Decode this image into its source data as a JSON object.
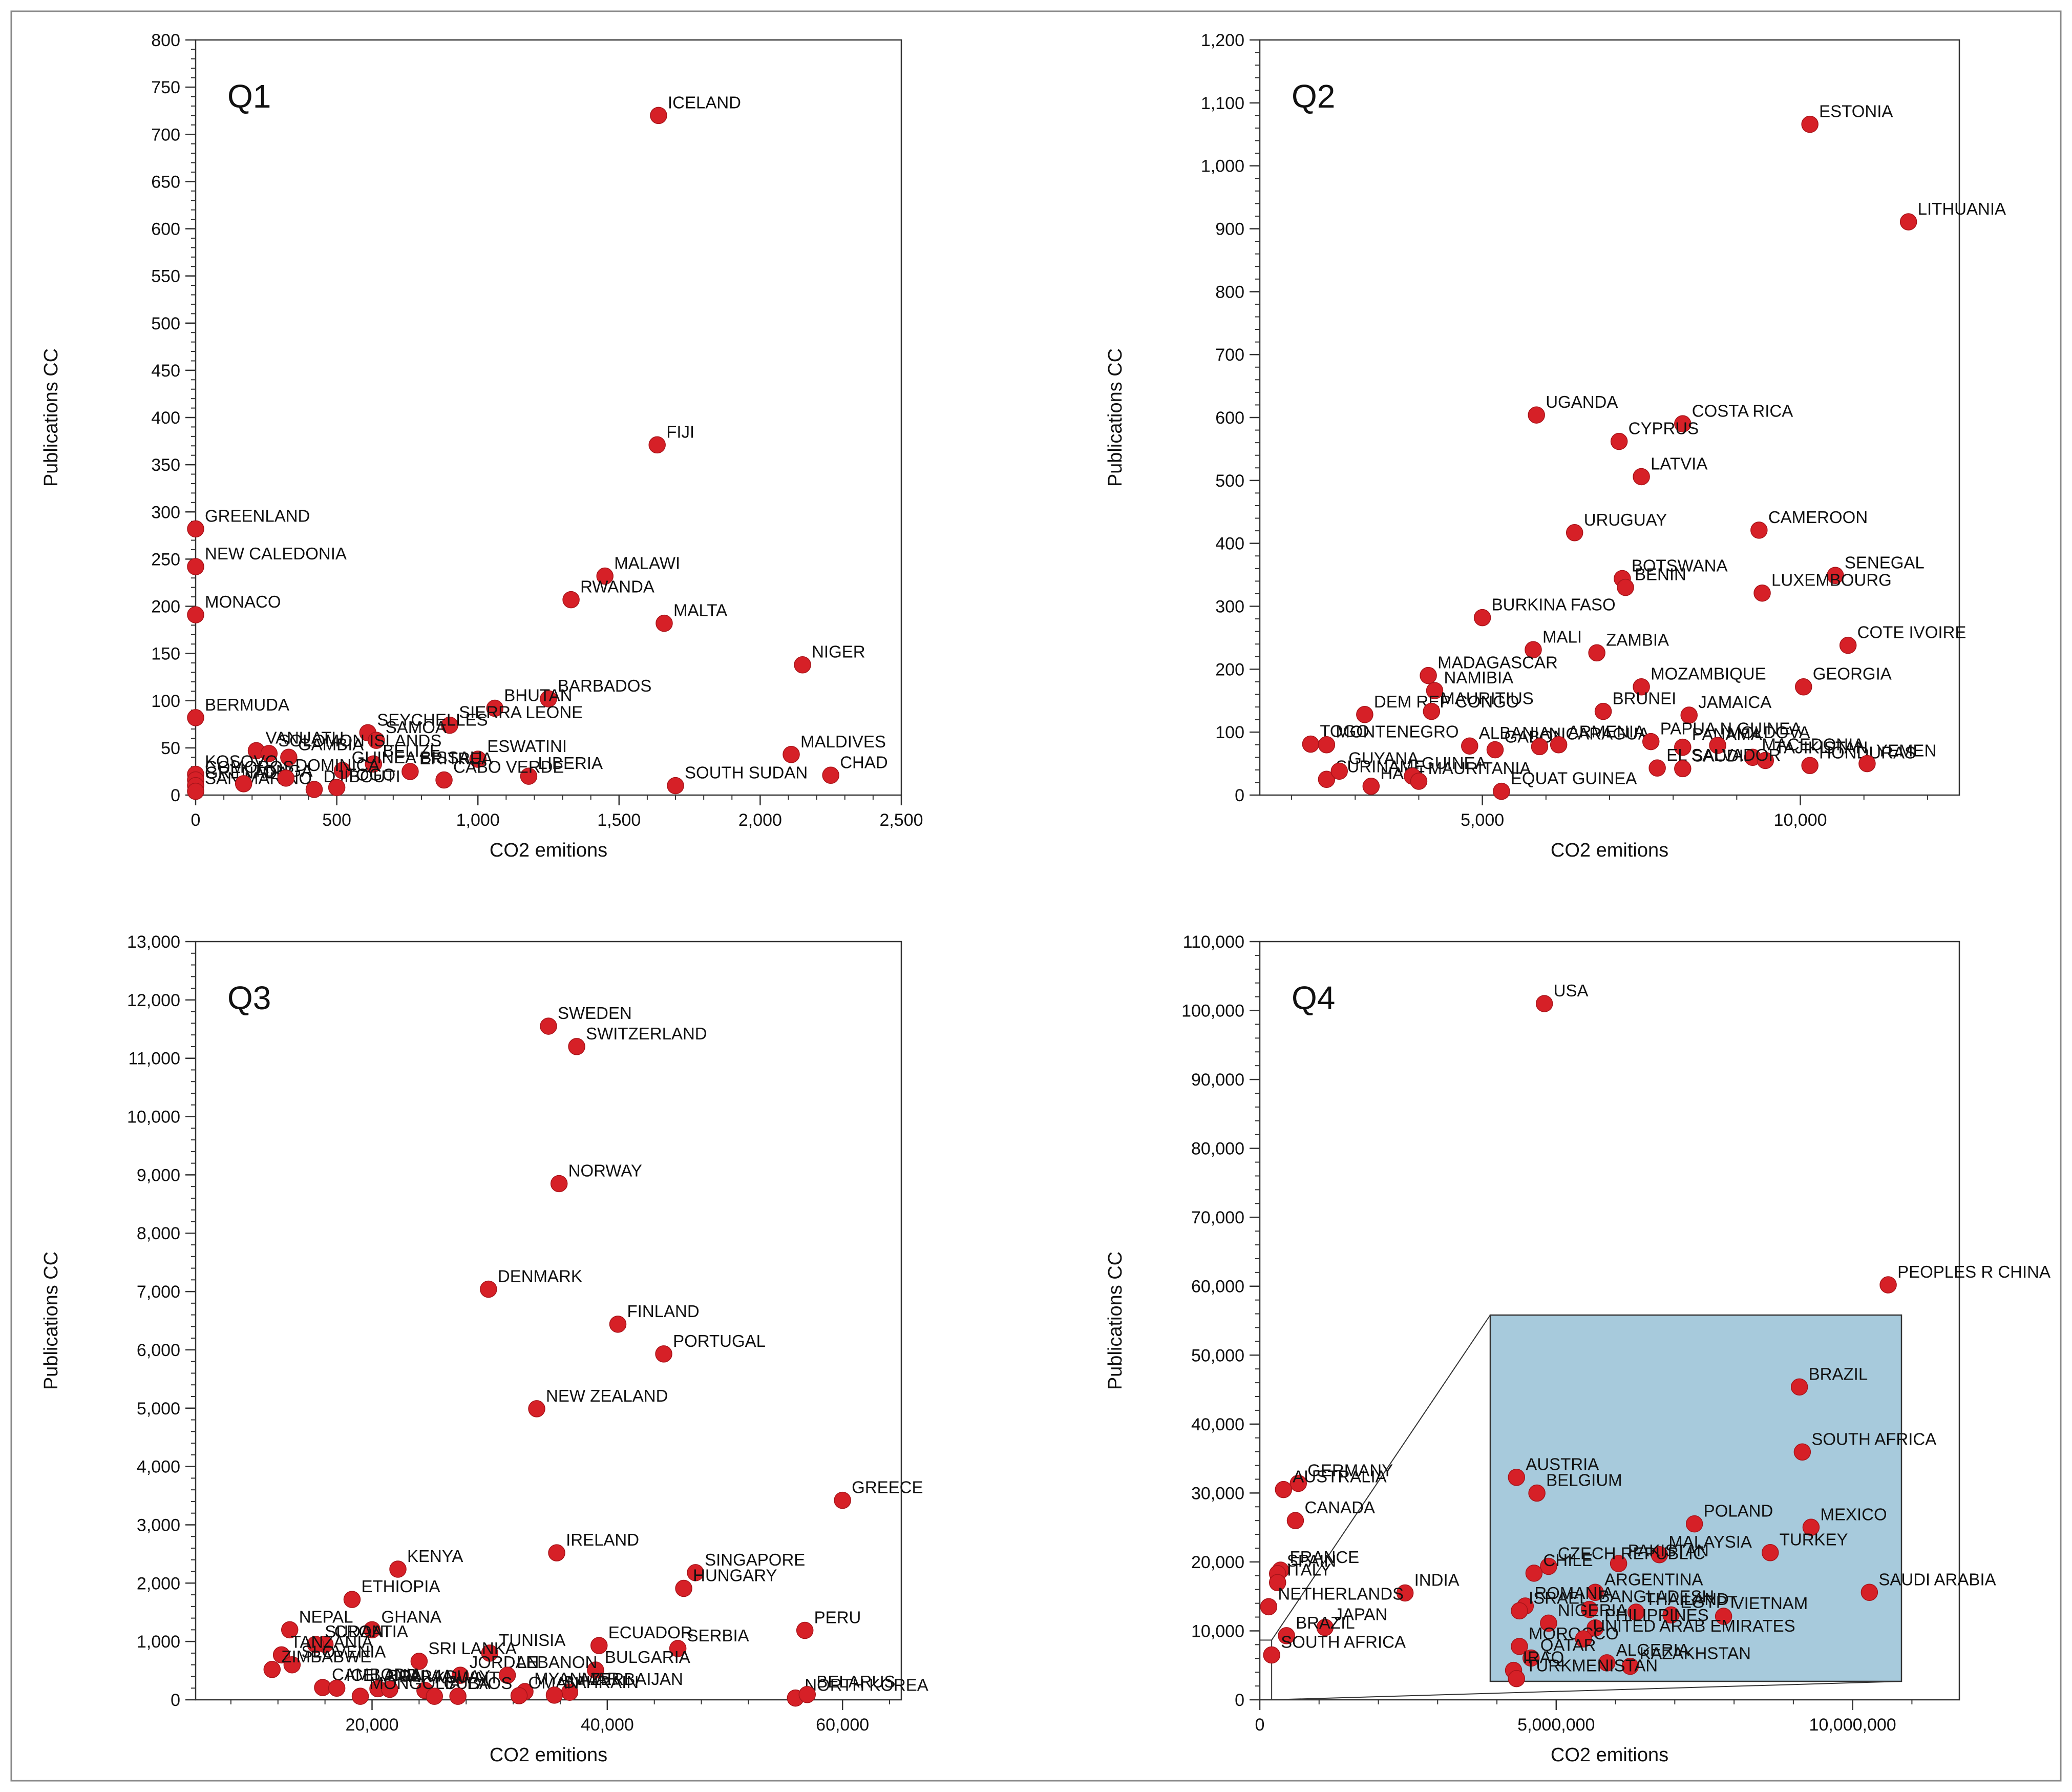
{
  "chart_data": [
    {
      "type": "scatter",
      "title": "Q1",
      "xlabel": "CO2 emitions",
      "ylabel": "Publications CC",
      "xlim": [
        0,
        2500
      ],
      "ylim": [
        0,
        800
      ],
      "xticks": [
        0,
        500,
        1000,
        1500,
        2000,
        2500
      ],
      "xtick_labels": [
        "0",
        "500",
        "1,000",
        "1,500",
        "2,000",
        "2,500"
      ],
      "yticks": [
        0,
        50,
        100,
        150,
        200,
        250,
        300,
        350,
        400,
        450,
        500,
        550,
        600,
        650,
        700,
        750,
        800
      ],
      "ytick_labels": [
        "0",
        "50",
        "100",
        "150",
        "200",
        "250",
        "300",
        "350",
        "400",
        "450",
        "500",
        "550",
        "600",
        "650",
        "700",
        "750",
        "800"
      ],
      "grid": false,
      "points": [
        {
          "x": 1640,
          "y": 720,
          "label": "ICELAND"
        },
        {
          "x": 1635,
          "y": 371,
          "label": "FIJI"
        },
        {
          "x": 0,
          "y": 282,
          "label": "GREENLAND"
        },
        {
          "x": 0,
          "y": 242,
          "label": "NEW CALEDONIA"
        },
        {
          "x": 1450,
          "y": 232,
          "label": "MALAWI"
        },
        {
          "x": 1330,
          "y": 207,
          "label": "RWANDA"
        },
        {
          "x": 0,
          "y": 191,
          "label": "MONACO"
        },
        {
          "x": 1660,
          "y": 182,
          "label": "MALTA"
        },
        {
          "x": 2150,
          "y": 138,
          "label": "NIGER"
        },
        {
          "x": 1250,
          "y": 102,
          "label": "BARBADOS"
        },
        {
          "x": 1060,
          "y": 92,
          "label": "BHUTAN"
        },
        {
          "x": 0,
          "y": 82,
          "label": "BERMUDA"
        },
        {
          "x": 900,
          "y": 74,
          "label": "SIERRA LEONE"
        },
        {
          "x": 610,
          "y": 66,
          "label": "SEYCHELLES"
        },
        {
          "x": 640,
          "y": 58,
          "label": "SAMOA"
        },
        {
          "x": 2110,
          "y": 43,
          "label": "MALDIVES"
        },
        {
          "x": 215,
          "y": 47,
          "label": "VANUATU"
        },
        {
          "x": 260,
          "y": 44,
          "label": "SOLOMON ISLANDS"
        },
        {
          "x": 330,
          "y": 40,
          "label": "GAMBIA"
        },
        {
          "x": 1000,
          "y": 38,
          "label": "ESWATINI"
        },
        {
          "x": 2250,
          "y": 21,
          "label": "CHAD"
        },
        {
          "x": 1180,
          "y": 20,
          "label": "LIBERIA"
        },
        {
          "x": 1700,
          "y": 10,
          "label": "SOUTH SUDAN"
        },
        {
          "x": 880,
          "y": 16,
          "label": "CABO VERDE"
        },
        {
          "x": 760,
          "y": 25,
          "label": "ERITREA"
        },
        {
          "x": 630,
          "y": 33,
          "label": "BELIZE"
        },
        {
          "x": 520,
          "y": 26,
          "label": "GUINEA BISSAU"
        },
        {
          "x": 420,
          "y": 6,
          "label": "DJIBOUTI"
        },
        {
          "x": 500,
          "y": 8,
          "label": "TOGO"
        },
        {
          "x": 0,
          "y": 22,
          "label": "KOSOVO"
        },
        {
          "x": 0,
          "y": 16,
          "label": "COMOROS"
        },
        {
          "x": 0,
          "y": 10,
          "label": "GRENADA"
        },
        {
          "x": 0,
          "y": 4,
          "label": "SAN MARINO"
        },
        {
          "x": 170,
          "y": 12,
          "label": "TONGA"
        },
        {
          "x": 320,
          "y": 18,
          "label": "DOMINICA"
        }
      ]
    },
    {
      "type": "scatter",
      "title": "Q2",
      "xlabel": "CO2 emitions",
      "ylabel": "Publications CC",
      "xlim": [
        1500,
        12500
      ],
      "ylim": [
        0,
        1200
      ],
      "xticks": [
        5000,
        10000
      ],
      "xtick_labels": [
        "5,000",
        "10,000"
      ],
      "yticks": [
        0,
        100,
        200,
        300,
        400,
        500,
        600,
        700,
        800,
        900,
        1000,
        1100,
        1200
      ],
      "ytick_labels": [
        "0",
        "100",
        "200",
        "300",
        "400",
        "500",
        "600",
        "700",
        "800",
        "900",
        "1,000",
        "1,100",
        "1,200"
      ],
      "grid": false,
      "points": [
        {
          "x": 10150,
          "y": 1066,
          "label": "ESTONIA"
        },
        {
          "x": 11700,
          "y": 911,
          "label": "LITHUANIA"
        },
        {
          "x": 5850,
          "y": 604,
          "label": "UGANDA"
        },
        {
          "x": 8150,
          "y": 590,
          "label": "COSTA RICA"
        },
        {
          "x": 7150,
          "y": 562,
          "label": "CYPRUS"
        },
        {
          "x": 7500,
          "y": 506,
          "label": "LATVIA"
        },
        {
          "x": 6450,
          "y": 417,
          "label": "URUGUAY"
        },
        {
          "x": 9350,
          "y": 421,
          "label": "CAMEROON"
        },
        {
          "x": 7200,
          "y": 344,
          "label": "BOTSWANA"
        },
        {
          "x": 7250,
          "y": 330,
          "label": "BENIN"
        },
        {
          "x": 10550,
          "y": 349,
          "label": "SENEGAL"
        },
        {
          "x": 9400,
          "y": 321,
          "label": "LUXEMBOURG"
        },
        {
          "x": 5000,
          "y": 282,
          "label": "BURKINA FASO"
        },
        {
          "x": 10750,
          "y": 238,
          "label": "COTE IVOIRE"
        },
        {
          "x": 5800,
          "y": 231,
          "label": "MALI"
        },
        {
          "x": 6800,
          "y": 226,
          "label": "ZAMBIA"
        },
        {
          "x": 4150,
          "y": 190,
          "label": "MADAGASCAR"
        },
        {
          "x": 4250,
          "y": 166,
          "label": "NAMIBIA"
        },
        {
          "x": 7500,
          "y": 172,
          "label": "MOZAMBIQUE"
        },
        {
          "x": 10050,
          "y": 172,
          "label": "GEORGIA"
        },
        {
          "x": 3150,
          "y": 128,
          "label": "DEM REP CONGO"
        },
        {
          "x": 4200,
          "y": 133,
          "label": "MAURITIUS"
        },
        {
          "x": 6900,
          "y": 133,
          "label": "BRUNEI"
        },
        {
          "x": 8250,
          "y": 127,
          "label": "JAMAICA"
        },
        {
          "x": 2300,
          "y": 81,
          "label": "TOGO"
        },
        {
          "x": 2550,
          "y": 80,
          "label": "MONTENEGRO"
        },
        {
          "x": 4800,
          "y": 78,
          "label": "ALBANIA"
        },
        {
          "x": 5200,
          "y": 72,
          "label": "GABON"
        },
        {
          "x": 5900,
          "y": 77,
          "label": "NICARAGUA"
        },
        {
          "x": 6200,
          "y": 80,
          "label": "ARMENIA"
        },
        {
          "x": 7650,
          "y": 85,
          "label": "PAPUA N GUINEA"
        },
        {
          "x": 8150,
          "y": 76,
          "label": "PANAMA"
        },
        {
          "x": 8700,
          "y": 79,
          "label": "MOLDOVA"
        },
        {
          "x": 9250,
          "y": 60,
          "label": "MACEDONIA"
        },
        {
          "x": 9450,
          "y": 55,
          "label": "TAJIKISTAN"
        },
        {
          "x": 10150,
          "y": 47,
          "label": "HONDURAS"
        },
        {
          "x": 11050,
          "y": 50,
          "label": "YEMEN"
        },
        {
          "x": 2550,
          "y": 25,
          "label": "SURINAME"
        },
        {
          "x": 2750,
          "y": 38,
          "label": "GUYANA"
        },
        {
          "x": 3250,
          "y": 14,
          "label": "HAITI"
        },
        {
          "x": 3900,
          "y": 30,
          "label": "GUINEA"
        },
        {
          "x": 4000,
          "y": 22,
          "label": "MAURITANIA"
        },
        {
          "x": 5300,
          "y": 6,
          "label": "EQUAT GUINEA"
        },
        {
          "x": 7750,
          "y": 43,
          "label": "EL SALVADOR"
        },
        {
          "x": 8150,
          "y": 42,
          "label": "SAUDI"
        }
      ]
    },
    {
      "type": "scatter",
      "title": "Q3",
      "xlabel": "CO2 emitions",
      "ylabel": "Publications CC",
      "xlim": [
        5000,
        65000
      ],
      "ylim": [
        0,
        13000
      ],
      "xticks": [
        20000,
        40000,
        60000
      ],
      "xtick_labels": [
        "20,000",
        "40,000",
        "60,000"
      ],
      "yticks": [
        0,
        1000,
        2000,
        3000,
        4000,
        5000,
        6000,
        7000,
        8000,
        9000,
        10000,
        11000,
        12000,
        13000
      ],
      "ytick_labels": [
        "0",
        "1,000",
        "2,000",
        "3,000",
        "4,000",
        "5,000",
        "6,000",
        "7,000",
        "8,000",
        "9,000",
        "10,000",
        "11,000",
        "12,000",
        "13,000"
      ],
      "grid": false,
      "points": [
        {
          "x": 35000,
          "y": 11550,
          "label": "SWEDEN"
        },
        {
          "x": 37400,
          "y": 11200,
          "label": "SWITZERLAND"
        },
        {
          "x": 35900,
          "y": 8850,
          "label": "NORWAY"
        },
        {
          "x": 29900,
          "y": 7040,
          "label": "DENMARK"
        },
        {
          "x": 40900,
          "y": 6440,
          "label": "FINLAND"
        },
        {
          "x": 44800,
          "y": 5930,
          "label": "PORTUGAL"
        },
        {
          "x": 34000,
          "y": 4990,
          "label": "NEW ZEALAND"
        },
        {
          "x": 60000,
          "y": 3420,
          "label": "GREECE"
        },
        {
          "x": 35700,
          "y": 2520,
          "label": "IRELAND"
        },
        {
          "x": 22200,
          "y": 2240,
          "label": "KENYA"
        },
        {
          "x": 47500,
          "y": 2180,
          "label": "SINGAPORE"
        },
        {
          "x": 46500,
          "y": 1910,
          "label": "HUNGARY"
        },
        {
          "x": 18300,
          "y": 1720,
          "label": "ETHIOPIA"
        },
        {
          "x": 56800,
          "y": 1190,
          "label": "PERU"
        },
        {
          "x": 13000,
          "y": 1200,
          "label": "NEPAL"
        },
        {
          "x": 20000,
          "y": 1200,
          "label": "GHANA"
        },
        {
          "x": 16000,
          "y": 950,
          "label": "CROATIA"
        },
        {
          "x": 15200,
          "y": 950,
          "label": "SUDAN"
        },
        {
          "x": 39300,
          "y": 930,
          "label": "ECUADOR"
        },
        {
          "x": 46000,
          "y": 880,
          "label": "SERBIA"
        },
        {
          "x": 30000,
          "y": 800,
          "label": "TUNISIA"
        },
        {
          "x": 12300,
          "y": 770,
          "label": "TANZANIA"
        },
        {
          "x": 24000,
          "y": 660,
          "label": "SRI LANKA"
        },
        {
          "x": 13200,
          "y": 600,
          "label": "SLOVENIA"
        },
        {
          "x": 11500,
          "y": 520,
          "label": "ZIMBABWE"
        },
        {
          "x": 39000,
          "y": 510,
          "label": "BULGARIA"
        },
        {
          "x": 27500,
          "y": 420,
          "label": "JORDAN"
        },
        {
          "x": 31500,
          "y": 420,
          "label": "LEBANON"
        },
        {
          "x": 15800,
          "y": 210,
          "label": "CAMBODIA"
        },
        {
          "x": 17000,
          "y": 200,
          "label": "ICELAND"
        },
        {
          "x": 20500,
          "y": 190,
          "label": "BOLIVIA"
        },
        {
          "x": 21500,
          "y": 180,
          "label": "PARAGUAY"
        },
        {
          "x": 24500,
          "y": 160,
          "label": "KUWAIT"
        },
        {
          "x": 33000,
          "y": 140,
          "label": "MYANMAR"
        },
        {
          "x": 36800,
          "y": 130,
          "label": "AZERBAIJAN"
        },
        {
          "x": 19000,
          "y": 60,
          "label": "MONGOLIA"
        },
        {
          "x": 25300,
          "y": 60,
          "label": "CUBA"
        },
        {
          "x": 27300,
          "y": 60,
          "label": "LAOS"
        },
        {
          "x": 32500,
          "y": 70,
          "label": "OMAN"
        },
        {
          "x": 35500,
          "y": 80,
          "label": "BAHRAIN"
        },
        {
          "x": 56000,
          "y": 30,
          "label": "NORTH KOREA"
        },
        {
          "x": 57000,
          "y": 90,
          "label": "BELARUS"
        }
      ]
    },
    {
      "type": "scatter",
      "title": "Q4",
      "xlabel": "CO2 emitions",
      "ylabel": "Publications CC",
      "xlim": [
        0,
        11800000
      ],
      "ylim": [
        0,
        110000
      ],
      "xticks": [
        0,
        5000000,
        10000000
      ],
      "xtick_labels": [
        "0",
        "5,000,000",
        "10,000,000"
      ],
      "yticks": [
        0,
        10000,
        20000,
        30000,
        40000,
        50000,
        60000,
        70000,
        80000,
        90000,
        100000,
        110000
      ],
      "ytick_labels": [
        "0",
        "10,000",
        "20,000",
        "30,000",
        "40,000",
        "50,000",
        "60,000",
        "70,000",
        "80,000",
        "90,000",
        "100,000",
        "110,000"
      ],
      "grid": false,
      "points": [
        {
          "x": 4800000,
          "y": 101000,
          "label": "USA"
        },
        {
          "x": 10600000,
          "y": 60200,
          "label": "PEOPLES R CHINA"
        },
        {
          "x": 650000,
          "y": 31400,
          "label": "GERMANY"
        },
        {
          "x": 400000,
          "y": 30500,
          "label": "AUSTRALIA"
        },
        {
          "x": 600000,
          "y": 26000,
          "label": "CANADA"
        },
        {
          "x": 350000,
          "y": 18800,
          "label": "FRANCE"
        },
        {
          "x": 300000,
          "y": 18300,
          "label": "SPAIN"
        },
        {
          "x": 300000,
          "y": 17000,
          "label": "ITALY"
        },
        {
          "x": 2450000,
          "y": 15500,
          "label": "INDIA"
        },
        {
          "x": 150000,
          "y": 13500,
          "label": "NETHERLANDS"
        },
        {
          "x": 1100000,
          "y": 10500,
          "label": "JAPAN"
        },
        {
          "x": 450000,
          "y": 9300,
          "label": "BRAZIL"
        },
        {
          "x": 200000,
          "y": 6500,
          "label": "SOUTH AFRICA"
        }
      ],
      "inset": {
        "points": [
          {
            "label": "BRAZIL",
            "x": 9200000,
            "y": 45500
          },
          {
            "label": "SOUTH AFRICA",
            "x": 9250000,
            "y": 36000
          },
          {
            "label": "AUSTRIA",
            "x": 4350000,
            "y": 32300
          },
          {
            "label": "BELGIUM",
            "x": 4700000,
            "y": 30000
          },
          {
            "label": "POLAND",
            "x": 7400000,
            "y": 25500
          },
          {
            "label": "MEXICO",
            "x": 9400000,
            "y": 25000
          },
          {
            "label": "TURKEY",
            "x": 8700000,
            "y": 21300
          },
          {
            "label": "MALAYSIA",
            "x": 6800000,
            "y": 21000
          },
          {
            "label": "PAKISTAN",
            "x": 6100000,
            "y": 19700
          },
          {
            "label": "CZECH REPUBLIC",
            "x": 4900000,
            "y": 19300
          },
          {
            "label": "CHILE",
            "x": 4650000,
            "y": 18300
          },
          {
            "label": "SAUDI ARABIA",
            "x": 10400000,
            "y": 15500
          },
          {
            "label": "ARGENTINA",
            "x": 5700000,
            "y": 15500
          },
          {
            "label": "ROMANIA",
            "x": 4500000,
            "y": 13500
          },
          {
            "label": "ISRAEL",
            "x": 4400000,
            "y": 12800
          },
          {
            "label": "BANGLADESH",
            "x": 5600000,
            "y": 13000
          },
          {
            "label": "THAILAND",
            "x": 6400000,
            "y": 12600
          },
          {
            "label": "EGYPT",
            "x": 7000000,
            "y": 12200
          },
          {
            "label": "VIETNAM",
            "x": 7900000,
            "y": 12000
          },
          {
            "label": "NIGERIA",
            "x": 4900000,
            "y": 11000
          },
          {
            "label": "PHILIPPINES",
            "x": 5700000,
            "y": 10300
          },
          {
            "label": "MOROCCO",
            "x": 4400000,
            "y": 7600
          },
          {
            "label": "UNITED ARAB EMIRATES",
            "x": 5500000,
            "y": 8700
          },
          {
            "label": "QATAR",
            "x": 4600000,
            "y": 5900
          },
          {
            "label": "ALGERIA",
            "x": 5900000,
            "y": 5200
          },
          {
            "label": "KAZAKHSTAN",
            "x": 6300000,
            "y": 4700
          },
          {
            "label": "IRAQ",
            "x": 4300000,
            "y": 4100
          },
          {
            "label": "TURKMENISTAN",
            "x": 4350000,
            "y": 2900
          }
        ]
      }
    }
  ]
}
